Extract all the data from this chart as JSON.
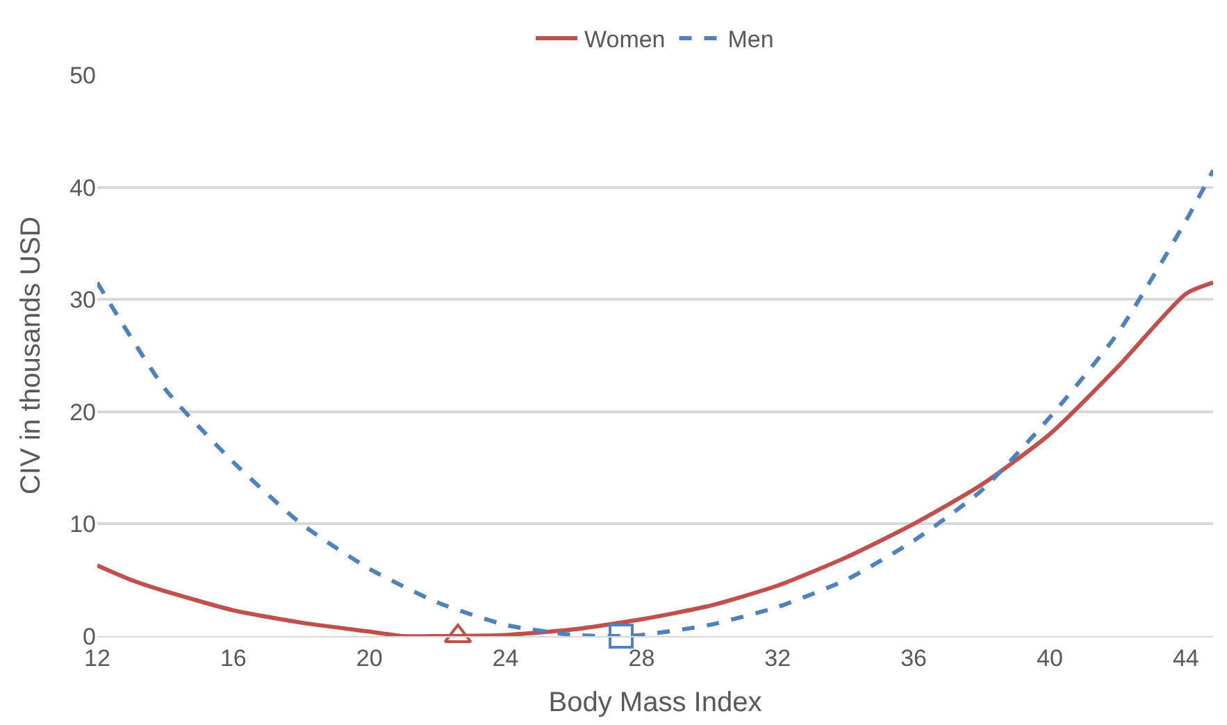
{
  "chart_data": {
    "type": "line",
    "xlabel": "Body Mass Index",
    "ylabel": "CIV in thousands USD",
    "xlim": [
      12,
      44.8
    ],
    "xticks": [
      12,
      16,
      20,
      24,
      28,
      32,
      36,
      40,
      44
    ],
    "ylim": [
      0,
      50
    ],
    "yticks": [
      0,
      10,
      20,
      30,
      40,
      50
    ],
    "grid": "y",
    "legend": "top",
    "marker": "none",
    "series": [
      {
        "name": "Women",
        "color": "#c0504d",
        "line_style": "solid",
        "x": [
          12,
          13,
          14,
          16,
          18,
          20,
          21,
          22,
          24,
          26,
          28,
          30,
          32,
          34,
          36,
          38,
          40,
          42,
          44,
          44.8
        ],
        "values": [
          6.3,
          5.0,
          4.0,
          2.3,
          1.2,
          0.4,
          0,
          0,
          0.1,
          0.6,
          1.5,
          2.7,
          4.5,
          7,
          10,
          13.5,
          18,
          24,
          30.5,
          31.5
        ]
      },
      {
        "name": "Men",
        "color": "#4f81bd",
        "line_style": "dashed",
        "x": [
          12,
          14,
          16,
          18,
          20,
          22,
          24,
          26,
          27.4,
          28,
          30,
          32,
          34,
          36,
          38,
          40,
          42,
          44,
          44.8
        ],
        "values": [
          31.5,
          22,
          15.5,
          10,
          6,
          3,
          1,
          0.1,
          0,
          0.1,
          1,
          2.6,
          5,
          8.5,
          13,
          19.5,
          27,
          37,
          41.5
        ]
      },
      {
        "type": "scatter",
        "marker": "triangle",
        "color": "#c0504d",
        "x": [
          22.6
        ],
        "values": [
          0
        ]
      },
      {
        "type": "scatter",
        "marker": "square",
        "color": "#4f81bd",
        "x": [
          27.4
        ],
        "values": [
          0
        ]
      }
    ]
  }
}
